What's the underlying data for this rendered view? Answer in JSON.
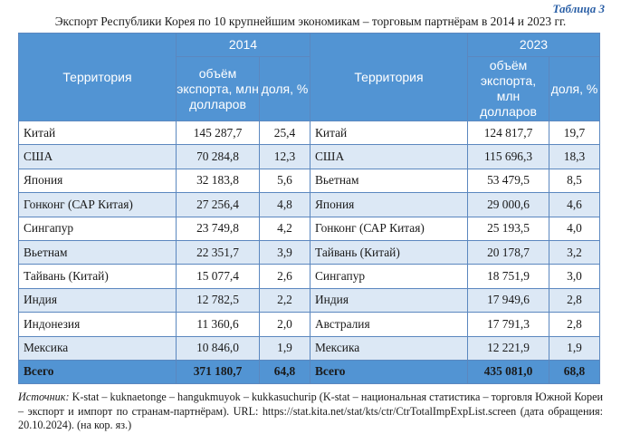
{
  "table_number": "Таблица 3",
  "caption": "Экспорт Республики Корея по 10 крупнейшим экономикам – торговым партнёрам в 2014 и 2023 гг.",
  "header": {
    "year_left": "2014",
    "year_right": "2023",
    "territory": "Территория",
    "export_volume": "объём экспорта, млн долларов",
    "share": "доля, %"
  },
  "rows": [
    {
      "t2014": "Китай",
      "v2014": "145 287,7",
      "s2014": "25,4",
      "t2023": "Китай",
      "v2023": "124 817,7",
      "s2023": "19,7"
    },
    {
      "t2014": "США",
      "v2014": "70 284,8",
      "s2014": "12,3",
      "t2023": "США",
      "v2023": "115 696,3",
      "s2023": "18,3"
    },
    {
      "t2014": "Япония",
      "v2014": "32 183,8",
      "s2014": "5,6",
      "t2023": "Вьетнам",
      "v2023": "53 479,5",
      "s2023": "8,5"
    },
    {
      "t2014": "Гонконг (САР Китая)",
      "v2014": "27 256,4",
      "s2014": "4,8",
      "t2023": "Япония",
      "v2023": "29 000,6",
      "s2023": "4,6"
    },
    {
      "t2014": "Сингапур",
      "v2014": "23 749,8",
      "s2014": "4,2",
      "t2023": "Гонконг (САР Китая)",
      "v2023": "25 193,5",
      "s2023": "4,0"
    },
    {
      "t2014": "Вьетнам",
      "v2014": "22 351,7",
      "s2014": "3,9",
      "t2023": "Тайвань (Китай)",
      "v2023": "20 178,7",
      "s2023": "3,2"
    },
    {
      "t2014": "Тайвань (Китай)",
      "v2014": "15 077,4",
      "s2014": "2,6",
      "t2023": "Сингапур",
      "v2023": "18 751,9",
      "s2023": "3,0"
    },
    {
      "t2014": "Индия",
      "v2014": "12 782,5",
      "s2014": "2,2",
      "t2023": "Индия",
      "v2023": "17 949,6",
      "s2023": "2,8"
    },
    {
      "t2014": "Индонезия",
      "v2014": "11 360,6",
      "s2014": "2,0",
      "t2023": "Австралия",
      "v2023": "17 791,3",
      "s2023": "2,8"
    },
    {
      "t2014": "Мексика",
      "v2014": "10 846,0",
      "s2014": "1,9",
      "t2023": "Мексика",
      "v2023": "12 221,9",
      "s2023": "1,9"
    }
  ],
  "total": {
    "label": "Всего",
    "v2014": "371 180,7",
    "s2014": "64,8",
    "v2023": "435 081,0",
    "s2023": "68,8"
  },
  "source": {
    "label": "Источник:",
    "text": " K-stat – kuknaetonge – hangukmuyok – kukkasuchurip (K-stat – национальная статистика – торговля Южной Кореи – экспорт и импорт по странам-партнёрам). URL: https://stat.kita.net/stat/kts/ctr/CtrTotalImpExpList.screen (дата обращения: 20.10.2024). (на кор. яз.)"
  },
  "colors": {
    "header_bg": "#5294d3",
    "stripe": "#dce8f5",
    "border": "#5b87bf",
    "table_number": "#2a5fa6"
  }
}
